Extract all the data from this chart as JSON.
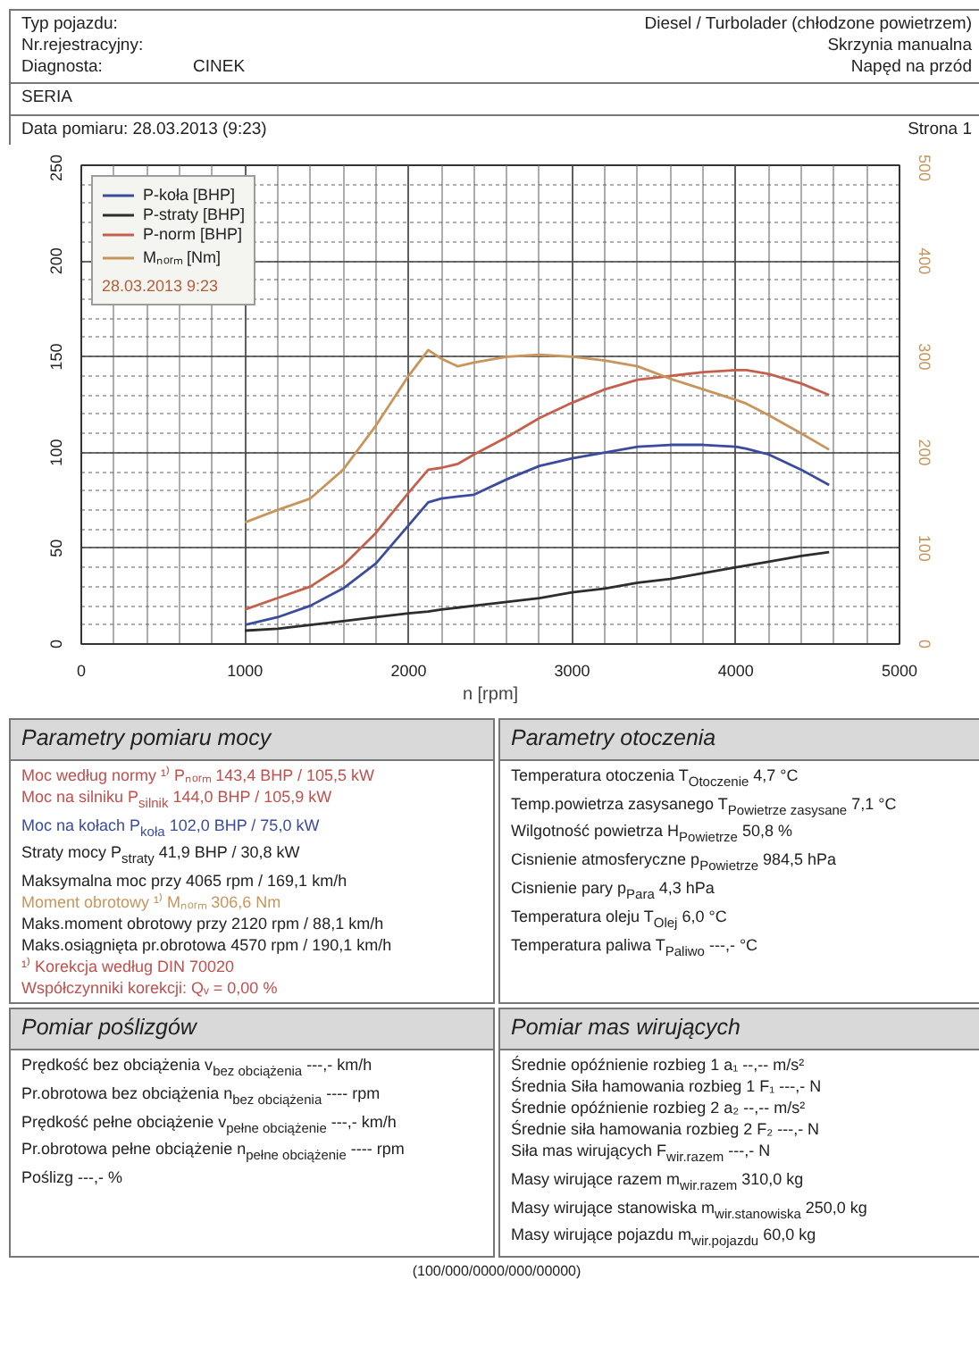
{
  "chart_data": {
    "type": "line",
    "xlabel": "n [rpm]",
    "x": [
      1000,
      1200,
      1400,
      1600,
      1800,
      2000,
      2120,
      2200,
      2300,
      2400,
      2600,
      2800,
      3000,
      3200,
      3400,
      3600,
      3800,
      4000,
      4065,
      4200,
      4400,
      4570
    ],
    "series": [
      {
        "name": "P-koła [BHP]",
        "color": "#3b4c9e",
        "values": [
          10,
          14,
          20,
          29,
          42,
          62,
          74,
          76,
          77,
          78,
          86,
          93,
          97,
          100,
          103,
          104,
          104,
          103,
          102,
          99,
          91,
          83
        ]
      },
      {
        "name": "P-straty [BHP]",
        "color": "#2b2f2b",
        "values": [
          7,
          8,
          10,
          12,
          14,
          16,
          17,
          18,
          19,
          20,
          22,
          24,
          27,
          29,
          32,
          34,
          37,
          40,
          41,
          43,
          46,
          48
        ]
      },
      {
        "name": "P-norm [BHP]",
        "color": "#c4604c",
        "values": [
          18,
          24,
          30,
          41,
          58,
          79,
          91,
          92,
          94,
          99,
          108,
          118,
          126,
          133,
          138,
          140,
          142,
          143,
          143,
          141,
          136,
          130
        ]
      },
      {
        "name": "Mₙₒᵣₘ [Nm]",
        "color": "#c8955c",
        "axis": "y2",
        "values": [
          127,
          140,
          152,
          182,
          228,
          280,
          307,
          298,
          290,
          294,
          300,
          302,
          300,
          296,
          290,
          277,
          266,
          255,
          251,
          239,
          220,
          203
        ]
      }
    ],
    "xlim": [
      0,
      5000
    ],
    "xticks": [
      0,
      1000,
      2000,
      3000,
      4000,
      5000
    ],
    "ylim": [
      0,
      250
    ],
    "yticks": [
      0,
      50,
      100,
      150,
      200,
      250
    ],
    "y2lim": [
      0,
      500
    ],
    "y2ticks": [
      0,
      100,
      200,
      300,
      400,
      500
    ],
    "grid": true,
    "legend": "top left",
    "legend_title": "28.03.2013 9:23",
    "annotations": [
      "Typ pojazdu:",
      "Nr.rejestracyjny:",
      "Diagnosta:",
      "CINEK",
      "Diesel / Turbolader (chłodzone powietrzem)",
      "Skrzynia manualna",
      "Napęd na przód",
      "SERIA",
      "Data pomiaru: 28.03.2013 (9:23)",
      "Strona 1",
      "Parametry pomiaru mocy",
      "Moc według normy ¹⁾ Pₙₒᵣₘ 143,4 BHP / 105,5 kW",
      "Moc na silniku P$_{silnik}$ 144,0 BHP / 105,9 kW",
      "Moc na kołach P$_{koła}$ 102,0 BHP / 75,0 kW",
      "Straty mocy P$_{straty}$ 41,9 BHP / 30,8 kW",
      "Maksymalna moc przy 4065 rpm / 169,1 km/h",
      "Moment obrotowy ¹⁾ Mₙₒᵣₘ 306,6 Nm",
      "Maks.moment obrotowy przy 2120 rpm / 88,1 km/h",
      "Maks.osiągnięta pr.obrotowa 4570 rpm / 190,1 km/h",
      "¹⁾ Korekcja według DIN 70020",
      "Współczynniki korekcji: Qᵥ = 0,00 %",
      "Parametry otoczenia",
      "Temperatura otoczenia T$_{Otoczenie}$ 4,7 °C",
      "Temp.powietrza zasysanego T$_{Powietrze zasysane}$ 7,1 °C",
      "Wilgotność powietrza H$_{Powietrze}$ 50,8 %",
      "Cisnienie atmosferyczne p$_{Powietrze}$ 984,5 hPa",
      "Cisnienie pary p$_{Para}$ 4,3 hPa",
      "Temperatura oleju T$_{Olej}$ 6,0 °C",
      "Temperatura paliwa T$_{Paliwo}$ ---,- °C",
      "Pomiar poślizgów",
      "Prędkość bez obciążenia v$_{bez obciążenia}$ ---,- km/h",
      "Pr.obrotowa bez obciążenia n$_{bez obciążenia}$ ---- rpm",
      "Prędkość pełne obciążenie v$_{pełne obciążenie}$ ---,- km/h",
      "Pr.obrotowa pełne obciążenie n$_{pełne obciążenie}$ ---- rpm",
      "Poślizg ---,- %",
      "Pomiar mas wirujących",
      "Średnie opóźnienie rozbieg 1 a₁ --,-- m/s²",
      "Średnia Siła hamowania rozbieg 1 F₁ ---,- N",
      "Średnie opóźnienie rozbieg 2 a₂ --,-- m/s²",
      "Średnie siła hamowania rozbieg 2 F₂ ---,- N",
      "Siła mas wirujących F$_{wir.razem}$ ---,- N",
      "Masy wirujące razem m$_{wir.razem}$ 310,0 kg",
      "Masy wirujące stanowiska m$_{wir.stanowiska}$ 250,0 kg",
      "Masy wirujące pojazdu m$_{wir.pojazdu}$ 60,0 kg",
      "(100/000/0000/000/00000)"
    ]
  }
}
